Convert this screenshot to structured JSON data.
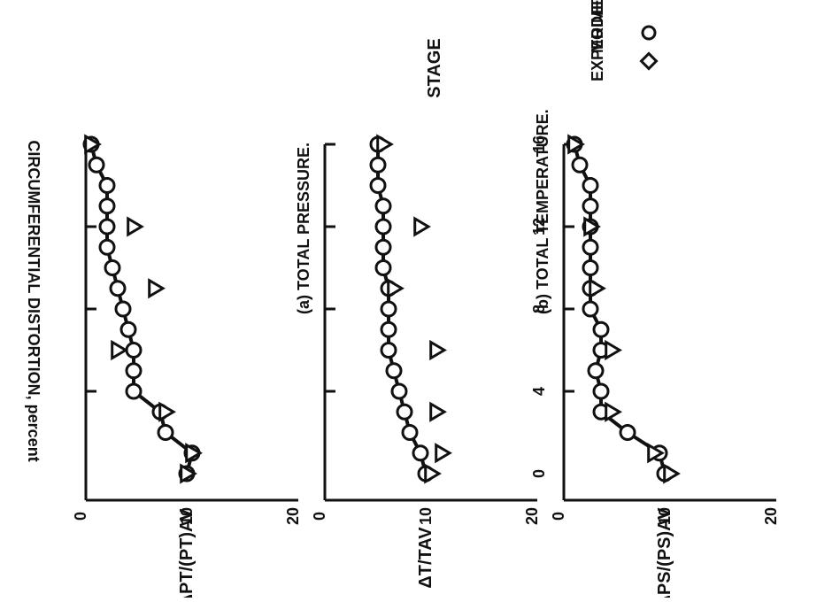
{
  "figure": {
    "y_axis_title": "CIRCUMFERENTIAL DISTORTION, percent",
    "x_axis_title": "STAGE",
    "legend": [
      {
        "symbol": "circle",
        "label": "MODEL"
      },
      {
        "symbol": "diamond",
        "label": "EXPERIMENTAL"
      }
    ]
  },
  "chart_data": [
    {
      "type": "line",
      "title": "(a) TOTAL PRESSURE.",
      "ylabel": "ΔPT/(PT)AV",
      "xlabel": "",
      "xlim": [
        0,
        16
      ],
      "ylim": [
        0,
        20
      ],
      "x_ticks": [
        0,
        4,
        8,
        12,
        16
      ],
      "y_ticks": [
        0,
        10,
        20
      ],
      "series": [
        {
          "name": "MODEL",
          "marker": "circle",
          "line": true,
          "x": [
            0,
            1,
            2,
            3,
            4,
            5,
            6,
            7,
            8,
            9,
            10,
            11,
            12,
            13,
            14,
            15,
            16
          ],
          "y": [
            9.5,
            10.0,
            7.5,
            7.0,
            4.5,
            4.5,
            4.5,
            4.0,
            3.5,
            3.0,
            2.5,
            2.0,
            2.0,
            2.0,
            2.0,
            1.0,
            0.5
          ]
        },
        {
          "name": "EXPERIMENTAL",
          "marker": "triangle",
          "line": false,
          "x": [
            0,
            1,
            3,
            6,
            9,
            12,
            16
          ],
          "y": [
            9.5,
            10.0,
            7.5,
            3.0,
            6.5,
            4.5,
            0.5
          ]
        }
      ]
    },
    {
      "type": "line",
      "title": "(b) TOTAL TEMPERATURE.",
      "ylabel": "ΔT/TAV",
      "xlabel": "",
      "xlim": [
        0,
        16
      ],
      "ylim": [
        0,
        20
      ],
      "x_ticks": [
        0,
        4,
        8,
        12,
        16
      ],
      "y_ticks": [
        0,
        10,
        20
      ],
      "series": [
        {
          "name": "MODEL",
          "marker": "circle",
          "line": true,
          "x": [
            0,
            1,
            2,
            3,
            4,
            5,
            6,
            7,
            8,
            9,
            10,
            11,
            12,
            13,
            14,
            15,
            16
          ],
          "y": [
            9.5,
            9.0,
            8.0,
            7.5,
            7.0,
            6.5,
            6.0,
            6.0,
            6.0,
            6.0,
            5.5,
            5.5,
            5.5,
            5.5,
            5.0,
            5.0,
            5.0
          ]
        },
        {
          "name": "EXPERIMENTAL",
          "marker": "triangle",
          "line": false,
          "x": [
            0,
            1,
            3,
            6,
            9,
            12,
            16
          ],
          "y": [
            10.0,
            11.0,
            10.5,
            10.5,
            6.5,
            9.0,
            5.5
          ]
        }
      ]
    },
    {
      "type": "line",
      "title": "",
      "ylabel": "ΔPS/(PS)AV",
      "xlabel": "STAGE",
      "xlim": [
        0,
        16
      ],
      "ylim": [
        0,
        20
      ],
      "x_ticks": [
        0,
        4,
        8,
        12,
        16
      ],
      "x_tick_labels": [
        "0",
        "4",
        "8",
        "12",
        "16"
      ],
      "y_ticks": [
        0,
        10,
        20
      ],
      "series": [
        {
          "name": "MODEL",
          "marker": "circle",
          "line": true,
          "x": [
            0,
            1,
            2,
            3,
            4,
            5,
            6,
            7,
            8,
            9,
            10,
            11,
            12,
            13,
            14,
            15,
            16
          ],
          "y": [
            9.5,
            9.0,
            6.0,
            3.5,
            3.5,
            3.0,
            3.5,
            3.5,
            2.5,
            2.5,
            2.5,
            2.5,
            2.5,
            2.5,
            2.5,
            1.5,
            1.0
          ]
        },
        {
          "name": "EXPERIMENTAL",
          "marker": "triangle",
          "line": false,
          "x": [
            0,
            1,
            3,
            6,
            9,
            12,
            16
          ],
          "y": [
            10.0,
            8.5,
            4.5,
            4.5,
            3.0,
            2.5,
            1.0
          ]
        }
      ]
    }
  ]
}
